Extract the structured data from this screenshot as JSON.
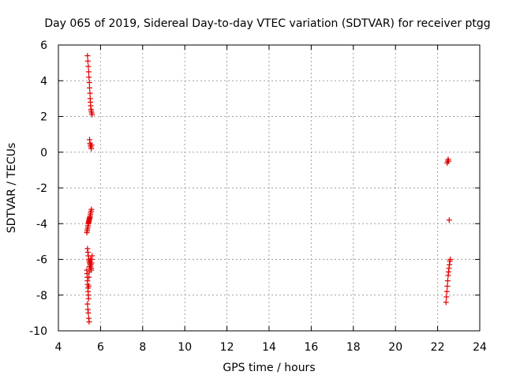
{
  "chart_data": {
    "type": "scatter",
    "title": "Day 065 of 2019, Sidereal Day-to-day VTEC variation (SDTVAR) for receiver ptgg",
    "xlabel": "GPS time / hours",
    "ylabel": "SDTVAR / TECUs",
    "xlim": [
      4,
      24
    ],
    "ylim": [
      -10,
      6
    ],
    "xticks": [
      "4",
      "6",
      "8",
      "10",
      "12",
      "14",
      "16",
      "18",
      "20",
      "22",
      "24"
    ],
    "yticks": [
      "6",
      "4",
      "2",
      "0",
      "-2",
      "-4",
      "-6",
      "-8",
      "-10"
    ],
    "grid": true,
    "marker": "plus",
    "color": "#e00000",
    "series": [
      {
        "name": "SDTVAR",
        "x": [
          5.38,
          5.4,
          5.42,
          5.44,
          5.45,
          5.47,
          5.48,
          5.5,
          5.51,
          5.52,
          5.53,
          5.55,
          5.56,
          5.58,
          5.6,
          5.48,
          5.5,
          5.52,
          5.54,
          5.56,
          5.58,
          5.35,
          5.37,
          5.38,
          5.4,
          5.41,
          5.42,
          5.43,
          5.44,
          5.45,
          5.46,
          5.47,
          5.48,
          5.49,
          5.5,
          5.52,
          5.53,
          5.55,
          5.57,
          5.38,
          5.4,
          5.42,
          5.44,
          5.46,
          5.48,
          5.5,
          5.52,
          5.54,
          5.56,
          5.58,
          5.6,
          5.35,
          5.36,
          5.37,
          5.38,
          5.39,
          5.4,
          5.41,
          5.42,
          5.43,
          5.44,
          5.45,
          5.46,
          5.47,
          5.48,
          5.5,
          5.52,
          5.54,
          5.56,
          5.58,
          5.38,
          5.4,
          5.42,
          5.44,
          5.46,
          22.45,
          22.48,
          22.5,
          22.52,
          22.55,
          22.4,
          22.42,
          22.44,
          22.46,
          22.48,
          22.5,
          22.52,
          22.54,
          22.56,
          22.58,
          22.6
        ],
        "y": [
          5.4,
          5.1,
          4.8,
          4.5,
          4.2,
          3.9,
          3.6,
          3.3,
          3.0,
          2.8,
          2.6,
          2.4,
          2.3,
          2.2,
          2.1,
          0.7,
          0.5,
          0.4,
          0.3,
          0.2,
          0.4,
          -4.5,
          -4.4,
          -4.3,
          -4.2,
          -4.1,
          -4.0,
          -3.95,
          -3.9,
          -3.85,
          -3.8,
          -3.75,
          -3.7,
          -3.65,
          -3.6,
          -3.5,
          -3.4,
          -3.3,
          -3.2,
          -5.4,
          -5.6,
          -5.8,
          -6.0,
          -6.1,
          -6.2,
          -6.3,
          -6.4,
          -6.5,
          -6.6,
          -6.0,
          -5.8,
          -6.6,
          -6.8,
          -7.0,
          -7.2,
          -7.4,
          -7.6,
          -7.8,
          -8.0,
          -8.2,
          -7.5,
          -7.0,
          -6.7,
          -6.4,
          -6.2,
          -6.1,
          -6.0,
          -6.3,
          -6.5,
          -6.2,
          -8.5,
          -8.8,
          -9.0,
          -9.3,
          -9.5,
          -0.6,
          -0.5,
          -0.4,
          -0.5,
          -3.8,
          -8.4,
          -8.1,
          -7.8,
          -7.5,
          -7.2,
          -6.9,
          -6.7,
          -6.5,
          -6.3,
          -6.1,
          -6.0
        ]
      }
    ]
  }
}
